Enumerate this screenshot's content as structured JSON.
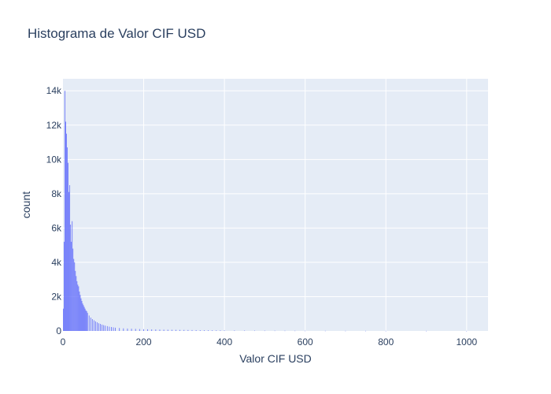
{
  "chart_data": {
    "type": "bar",
    "title": "Histograma de Valor CIF USD",
    "xlabel": "Valor CIF USD",
    "ylabel": "count",
    "xlim": [
      0,
      1053
    ],
    "ylim": [
      0,
      14700
    ],
    "x_ticks": [
      {
        "value": 0,
        "label": "0"
      },
      {
        "value": 200,
        "label": "200"
      },
      {
        "value": 400,
        "label": "400"
      },
      {
        "value": 600,
        "label": "600"
      },
      {
        "value": 800,
        "label": "800"
      },
      {
        "value": 1000,
        "label": "1000"
      }
    ],
    "y_ticks": [
      {
        "value": 0,
        "label": "0"
      },
      {
        "value": 2000,
        "label": "2k"
      },
      {
        "value": 4000,
        "label": "4k"
      },
      {
        "value": 6000,
        "label": "6k"
      },
      {
        "value": 8000,
        "label": "8k"
      },
      {
        "value": 10000,
        "label": "10k"
      },
      {
        "value": 12000,
        "label": "12k"
      },
      {
        "value": 14000,
        "label": "14k"
      }
    ],
    "bin_width": 2,
    "x": [
      1,
      3,
      5,
      7,
      9,
      11,
      13,
      15,
      17,
      19,
      21,
      23,
      25,
      27,
      29,
      31,
      33,
      35,
      37,
      39,
      41,
      43,
      45,
      47,
      49,
      51,
      53,
      55,
      57,
      59,
      61,
      65,
      69,
      73,
      77,
      81,
      85,
      89,
      93,
      97,
      101,
      105,
      110,
      115,
      120,
      125,
      130,
      140,
      150,
      160,
      170,
      180,
      190,
      200,
      210,
      220,
      230,
      240,
      250,
      260,
      270,
      280,
      290,
      300,
      310,
      320,
      330,
      340,
      350,
      360,
      370,
      380,
      390,
      400,
      425,
      450,
      475,
      500,
      525,
      550,
      575,
      600,
      650,
      700,
      750,
      800,
      900,
      1000
    ],
    "values": [
      1300,
      5200,
      14000,
      12200,
      11500,
      10700,
      9800,
      8100,
      8500,
      6200,
      5200,
      6400,
      4800,
      4200,
      4000,
      3500,
      3200,
      2900,
      2700,
      2600,
      2300,
      2100,
      1900,
      1750,
      1600,
      1500,
      1400,
      1300,
      1200,
      1150,
      1050,
      900,
      780,
      690,
      620,
      560,
      500,
      450,
      410,
      370,
      340,
      310,
      280,
      250,
      230,
      210,
      190,
      170,
      150,
      140,
      130,
      120,
      110,
      100,
      95,
      90,
      85,
      80,
      75,
      70,
      68,
      65,
      62,
      60,
      56,
      52,
      48,
      45,
      42,
      40,
      38,
      36,
      34,
      32,
      28,
      25,
      22,
      20,
      18,
      16,
      14,
      12,
      10,
      8,
      7,
      6,
      5,
      4
    ],
    "colors": {
      "bar": "#636efa",
      "plot_bg": "#e5ecf6",
      "grid": "#ffffff",
      "text": "#2a3f5f"
    },
    "grid": true,
    "legend": "none"
  }
}
